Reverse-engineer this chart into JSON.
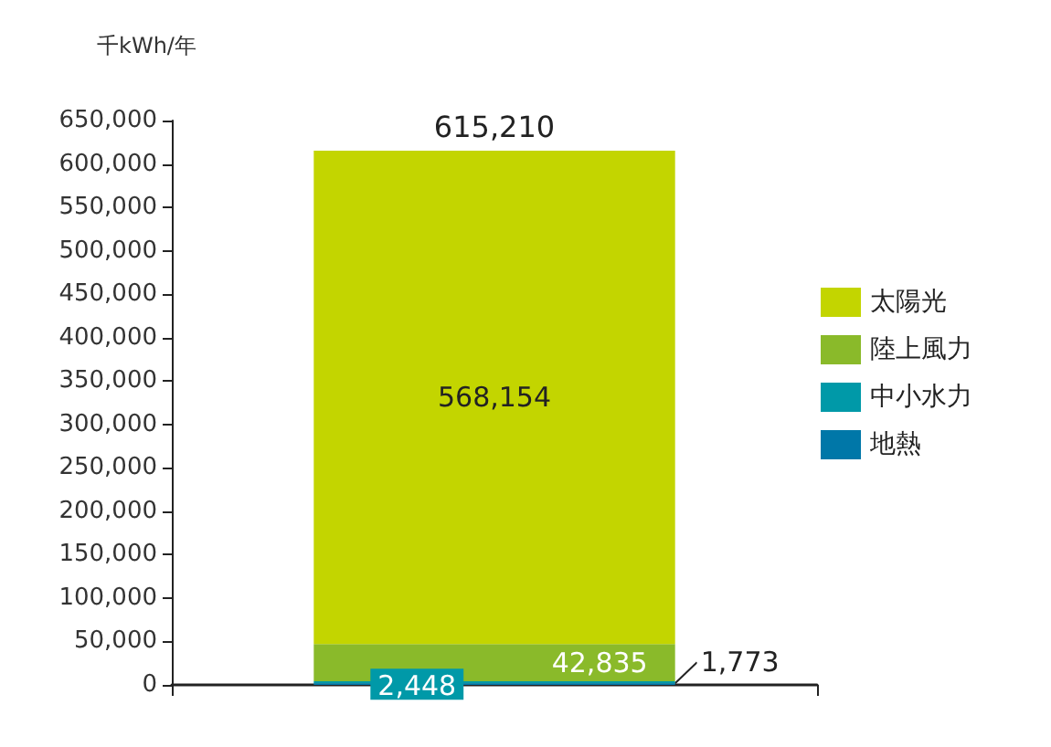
{
  "chart_data": {
    "type": "bar",
    "ylabel": "千kWh/年",
    "categories": [
      null
    ],
    "stacked": true,
    "series": [
      {
        "name": "地熱",
        "color": "#0077a8",
        "values": [
          1773
        ],
        "value_labels": [
          "1,773"
        ]
      },
      {
        "name": "中小水力",
        "color": "#0099a8",
        "values": [
          2448
        ],
        "value_labels": [
          "2,448"
        ]
      },
      {
        "name": "陸上風力",
        "color": "#8aba2a",
        "values": [
          42835
        ],
        "value_labels": [
          "42,835"
        ]
      },
      {
        "name": "太陽光",
        "color": "#c3d500",
        "values": [
          568154
        ],
        "value_labels": [
          "568,154"
        ]
      }
    ],
    "ylim": [
      0,
      650000
    ],
    "yticks": [
      0,
      {
        "value": 50000,
        "label": "50,000"
      },
      {
        "value": 100000,
        "label": "100,000"
      },
      {
        "value": 150000,
        "label": "150,000"
      },
      {
        "value": 200000,
        "label": "200,000"
      },
      {
        "value": 250000,
        "label": "250,000"
      },
      {
        "value": 300000,
        "label": "300,000"
      },
      {
        "value": 350000,
        "label": "350,000"
      },
      {
        "value": 400000,
        "label": "400,000"
      },
      {
        "value": 450000,
        "label": "450,000"
      },
      {
        "value": 500000,
        "label": "500,000"
      },
      {
        "value": 550000,
        "label": "550,000"
      },
      {
        "value": 600000,
        "label": "600,000"
      },
      {
        "value": 650000,
        "label": "650,000"
      }
    ],
    "totals": [
      "615,210"
    ],
    "grid": false,
    "legend": "right"
  }
}
